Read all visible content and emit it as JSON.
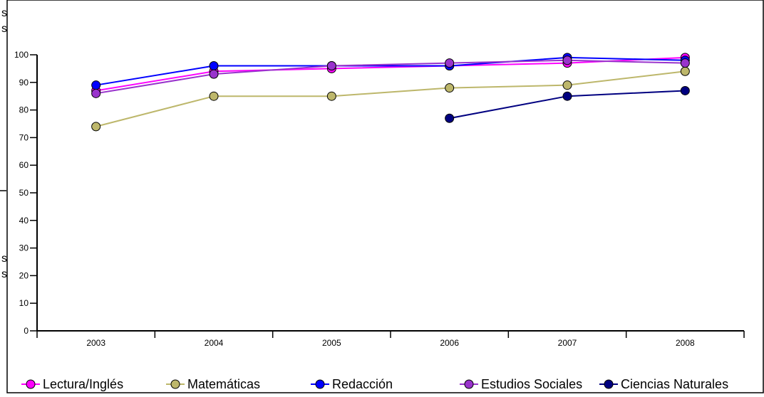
{
  "chart_data": {
    "type": "line",
    "title": "",
    "xlabel": "",
    "ylabel": "",
    "categories": [
      "2003",
      "2004",
      "2005",
      "2006",
      "2007",
      "2008"
    ],
    "ylim": [
      0,
      100
    ],
    "yticks": [
      "0",
      "10",
      "20",
      "30",
      "40",
      "50",
      "60",
      "70",
      "80",
      "90",
      "100"
    ],
    "grid": false,
    "legend_position": "bottom",
    "series": [
      {
        "name": "Lectura/Inglés",
        "color": "#ff00ff",
        "values": [
          87,
          94,
          95,
          96,
          97,
          99
        ]
      },
      {
        "name": "Matemáticas",
        "color": "#bdb76b",
        "values": [
          74,
          85,
          85,
          88,
          89,
          94
        ]
      },
      {
        "name": "Redacción",
        "color": "#0000ff",
        "values": [
          89,
          96,
          96,
          96,
          99,
          98
        ]
      },
      {
        "name": "Estudios Sociales",
        "color": "#9933cc",
        "values": [
          86,
          93,
          96,
          97,
          98,
          97
        ]
      },
      {
        "name": "Ciencias Naturales",
        "color": "#000080",
        "values": [
          null,
          null,
          null,
          77,
          85,
          87
        ]
      }
    ],
    "cut_off_left_fragments": [
      "s",
      "s",
      "s",
      "s"
    ]
  }
}
